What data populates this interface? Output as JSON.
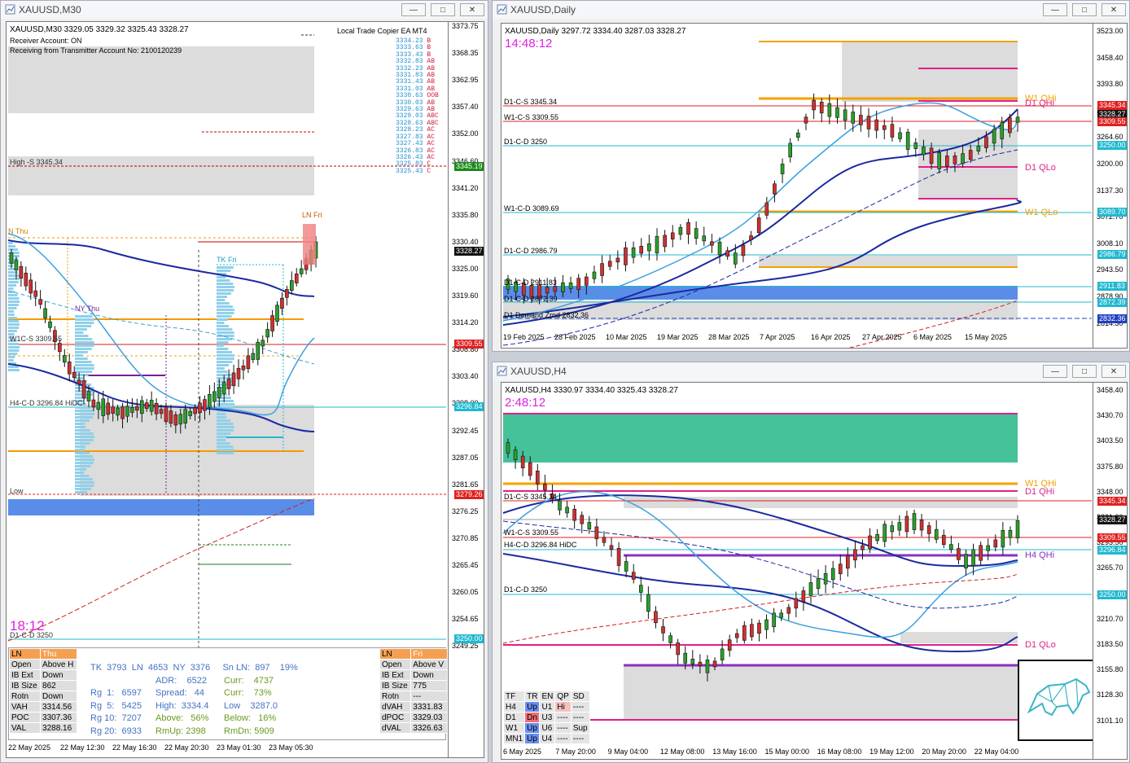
{
  "m30": {
    "title": "XAUUSD,M30",
    "header": "XAUUSD,M30   3329.05 3329.32 3325.43 3328.27",
    "copier": "Local Trade Copier EA MT4",
    "receiver": "Receiver Account: ON",
    "receiving": "Receiving from Transmitter Account No: 2100120239",
    "timer": "18:12",
    "price_ticks": [
      "3373.75",
      "3368.35",
      "3362.95",
      "3357.40",
      "3352.00",
      "3346.60",
      "3341.20",
      "3335.80",
      "3330.40",
      "3325.00",
      "3319.60",
      "3314.20",
      "3308.80",
      "3303.40",
      "3298.00",
      "3292.45",
      "3287.05",
      "3281.65",
      "3276.25",
      "3270.85",
      "3265.45",
      "3260.05",
      "3254.65",
      "3249.25"
    ],
    "date_ticks": [
      "22 May 2025",
      "22 May 12:30",
      "22 May 16:30",
      "22 May 20:30",
      "23 May 01:30",
      "23 May 05:30"
    ],
    "price_labels": [
      {
        "t": "3345.19",
        "c": "#1a8a1a"
      },
      {
        "t": "3328.27",
        "c": "#111"
      },
      {
        "t": "3309.55",
        "c": "#e02020"
      },
      {
        "t": "3296.84",
        "c": "#20b8d0"
      },
      {
        "t": "3279.26",
        "c": "#e02020"
      },
      {
        "t": "3250.00",
        "c": "#20b8d0"
      }
    ],
    "ladder": [
      [
        "3334.23",
        "B"
      ],
      [
        "3333.63",
        "B"
      ],
      [
        "3333.43",
        "B"
      ],
      [
        "3332.83",
        "AB"
      ],
      [
        "3332.23",
        "AB"
      ],
      [
        "3331.83",
        "AB"
      ],
      [
        "3331.43",
        "AB"
      ],
      [
        "3331.03",
        "AB"
      ],
      [
        "3330.63",
        "OOB"
      ],
      [
        "3330.03",
        "AB"
      ],
      [
        "3329.63",
        "AB"
      ],
      [
        "3329.03",
        "ABC"
      ],
      [
        "3328.63",
        "ABC"
      ],
      [
        "3328.23",
        "AC"
      ],
      [
        "3327.83",
        "AC"
      ],
      [
        "3327.43",
        "AC"
      ],
      [
        "3326.83",
        "AC"
      ],
      [
        "3326.43",
        "AC"
      ],
      [
        "3325.83",
        "C"
      ],
      [
        "3325.43",
        "C"
      ]
    ],
    "levels": {
      "high": "High -S 3345.34",
      "nthu": "N Thu",
      "nythu": "NY Thu",
      "w1cs": "W1C-S 3309.55",
      "h4cd": "H4-C-D 3296.84 HiDC",
      "low": "Low",
      "d1cd": "D1-C-D 3250",
      "lnfri": "LN Fri",
      "tkfri": "TK Fri"
    },
    "left_table": {
      "head": [
        "LN",
        "Thu"
      ],
      "rows": [
        [
          "Open",
          "Above H"
        ],
        [
          "IB Ext",
          "Down"
        ],
        [
          "IB Size",
          "862"
        ],
        [
          "Rotn",
          "Down"
        ],
        [
          "VAH",
          "3314.56"
        ],
        [
          "POC",
          "3307.36"
        ],
        [
          "VAL",
          "3288.16"
        ]
      ]
    },
    "right_table": {
      "head": [
        "LN",
        "Fri"
      ],
      "rows": [
        [
          "Open",
          "Above V"
        ],
        [
          "IB Ext",
          "Down"
        ],
        [
          "IB Size",
          "775"
        ],
        [
          "Rotn",
          "---"
        ],
        [
          "dVAH",
          "3331.83"
        ],
        [
          "dPOC",
          "3329.03"
        ],
        [
          "dVAL",
          "3326.63"
        ]
      ]
    },
    "stats": {
      "row1": "TK  3793  LN  4653  NY  3376     Sn LN:  897    19%",
      "adr": "ADR:    6522",
      "curr1": "Curr:    4737",
      "rg1": "Rg  1:   6597",
      "spread": "Spread:   44",
      "curr2": "Curr:    73%",
      "rg5": "Rg  5:   5425",
      "high": "High:  3334.4",
      "low": "Low    3287.0",
      "rg10": "Rg 10:  7207",
      "above": "Above:   56%",
      "below": "Below:   16%",
      "rg20": "Rg 20:  6933",
      "rmup": "RmUp: 2398",
      "rmdn": "RmDn: 5909"
    }
  },
  "daily": {
    "title": "XAUUSD,Daily",
    "header": "XAUUSD,Daily   3297.72 3334.40 3287.03 3328.27",
    "timer": "14:48:12",
    "price_ticks": [
      "3523.00",
      "3458.40",
      "3393.80",
      "3329.20",
      "3264.60",
      "3200.00",
      "3137.30",
      "3072.70",
      "3008.10",
      "2943.50",
      "2878.90",
      "2814.30"
    ],
    "date_ticks": [
      "19 Feb 2025",
      "28 Feb 2025",
      "10 Mar 2025",
      "19 Mar 2025",
      "28 Mar 2025",
      "7 Apr 2025",
      "16 Apr 2025",
      "27 Apr 2025",
      "6 May 2025",
      "15 May 2025"
    ],
    "price_labels": [
      {
        "t": "3345.34",
        "c": "#e02020"
      },
      {
        "t": "3328.27",
        "c": "#111"
      },
      {
        "t": "3309.55",
        "c": "#e02020"
      },
      {
        "t": "3250.00",
        "c": "#20b8d0"
      },
      {
        "t": "3089.70",
        "c": "#20b8d0"
      },
      {
        "t": "2986.79",
        "c": "#20b8d0"
      },
      {
        "t": "2911.83",
        "c": "#20b8d0"
      },
      {
        "t": "2872.39",
        "c": "#20b8d0"
      },
      {
        "t": "2832.36",
        "c": "#2040c0"
      }
    ],
    "levels": {
      "d1cs": "D1-C-S 3345.34",
      "w1cs": "W1-C-S 3309.55",
      "d1cd": "D1-C-D 3250",
      "w1cd": "W1-C-D 3089.69",
      "d1cd2": "D1-C-D 2986.79",
      "d1cd3": "D1-C-D 2911.83",
      "d1cd4": "D1-C-D 2872.39",
      "demand": "D1 Demand Zrnd 2832.36",
      "w1qhi": "W1 QHi",
      "d1qhi": "D1 QHi",
      "d1qlo": "D1 QLo",
      "w1qlo": "W1 QLo"
    }
  },
  "h4": {
    "title": "XAUUSD,H4",
    "header": "XAUUSD,H4   3330.97 3334.40 3325.43 3328.27",
    "timer": "2:48:12",
    "price_ticks": [
      "3458.40",
      "3430.70",
      "3403.50",
      "3375.80",
      "3348.00",
      "3321.00",
      "3293.50",
      "3265.70",
      "3238.70",
      "3210.70",
      "3183.50",
      "3155.80",
      "3128.30",
      "3101.10"
    ],
    "date_ticks": [
      "6 May 2025",
      "7 May 20:00",
      "9 May 04:00",
      "12 May 08:00",
      "13 May 16:00",
      "15 May 00:00",
      "16 May 08:00",
      "19 May 12:00",
      "20 May 20:00",
      "22 May 04:00"
    ],
    "price_labels": [
      {
        "t": "3345.34",
        "c": "#e02020"
      },
      {
        "t": "3328.27",
        "c": "#111"
      },
      {
        "t": "3309.55",
        "c": "#e02020"
      },
      {
        "t": "3296.84",
        "c": "#20b8d0"
      },
      {
        "t": "3250.00",
        "c": "#20b8d0"
      }
    ],
    "levels": {
      "d1cs": "D1-C-S 3345.34",
      "w1cs": "W1-C-S 3309.55",
      "h4cd": "H4-C-D 3296.84 HiDC",
      "d1cd": "D1-C-D 3250",
      "w1qhi": "W1 QHi",
      "d1qhi": "D1 QHi",
      "h4qhi": "H4 QHi",
      "d1qlo": "D1 QLo"
    },
    "tf_table": {
      "head": [
        "TF",
        "TR",
        "EN",
        "QP",
        "SD"
      ],
      "rows": [
        [
          "H4",
          "Up",
          "U1",
          "Hi",
          "----"
        ],
        [
          "D1",
          "Dn",
          "U3",
          "----",
          "----"
        ],
        [
          "W1",
          "Up",
          "U6",
          "----",
          "Sup"
        ],
        [
          "MN1",
          "Up",
          "U4",
          "----",
          "----"
        ]
      ]
    }
  }
}
